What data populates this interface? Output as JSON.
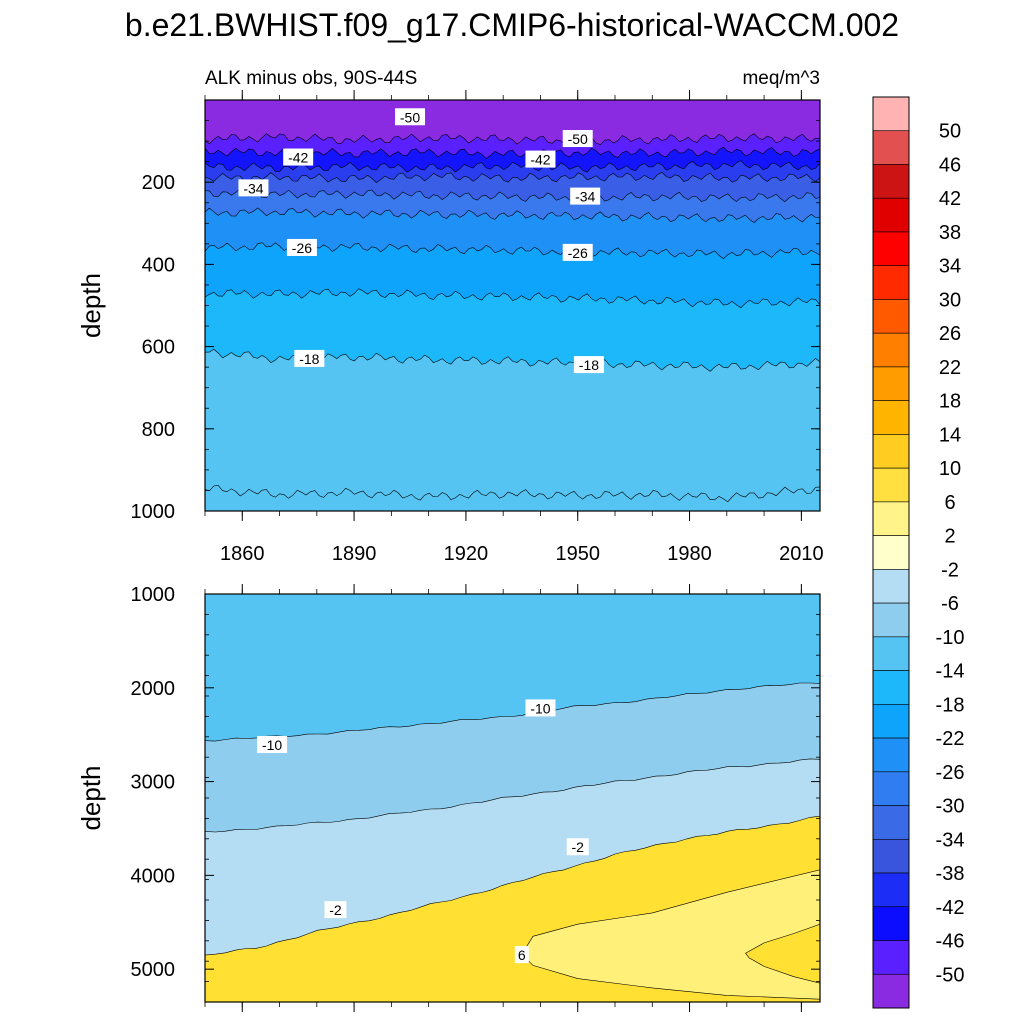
{
  "chart_data": {
    "type": "contour",
    "title": "b.e21.BWHIST.f09_g17.CMIP6-historical-WACCM.002",
    "subtitle_left": "ALK minus obs, 90S-44S",
    "subtitle_right": "meq/m^3",
    "xlabel": "",
    "xlim": [
      1850,
      2015
    ],
    "xticks": [
      "1860",
      "1890",
      "1920",
      "1950",
      "1980",
      "2010"
    ],
    "panels": [
      {
        "name": "upper",
        "ylabel": "depth",
        "ylim": [
          0,
          1000
        ],
        "yticks": [
          "200",
          "400",
          "600",
          "800",
          "1000"
        ],
        "bands": [
          {
            "level": -54,
            "color": "#8a2be2"
          },
          {
            "level": -50,
            "color": "#5a20ff"
          },
          {
            "level": -46,
            "color": "#1414ff"
          },
          {
            "level": -42,
            "color": "#2a3ef0"
          },
          {
            "level": -38,
            "color": "#3a5fe6"
          },
          {
            "level": -34,
            "color": "#3a78ee"
          },
          {
            "level": -30,
            "color": "#1f90f6"
          },
          {
            "level": -26,
            "color": "#0ea4fb"
          },
          {
            "level": -22,
            "color": "#1cb8fa"
          },
          {
            "level": -18,
            "color": "#56c4f2"
          }
        ],
        "contours": [
          {
            "level": -50,
            "years": [
              1850,
              1870,
              1890,
              1910,
              1930,
              1950,
              1970,
              1990,
              2015
            ],
            "depths": [
              95,
              90,
              98,
              92,
              95,
              100,
              96,
              92,
              95
            ]
          },
          {
            "level": -46,
            "years": [
              1850,
              1870,
              1890,
              1910,
              1930,
              1950,
              1970,
              1990,
              2015
            ],
            "depths": [
              125,
              128,
              130,
              127,
              132,
              128,
              130,
              125,
              128
            ]
          },
          {
            "level": -42,
            "years": [
              1850,
              1870,
              1890,
              1910,
              1930,
              1950,
              1970,
              1990,
              2015
            ],
            "depths": [
              162,
              165,
              162,
              166,
              160,
              165,
              162,
              158,
              162
            ]
          },
          {
            "level": -38,
            "years": [
              1850,
              1870,
              1890,
              1910,
              1930,
              1950,
              1970,
              1990,
              2015
            ],
            "depths": [
              190,
              188,
              192,
              185,
              190,
              188,
              186,
              190,
              188
            ]
          },
          {
            "level": -34,
            "years": [
              1850,
              1870,
              1890,
              1910,
              1930,
              1950,
              1970,
              1990,
              2015
            ],
            "depths": [
              225,
              230,
              228,
              232,
              235,
              238,
              235,
              238,
              235
            ]
          },
          {
            "level": -30,
            "years": [
              1850,
              1870,
              1890,
              1910,
              1930,
              1950,
              1970,
              1990,
              2015
            ],
            "depths": [
              275,
              272,
              276,
              278,
              280,
              282,
              285,
              288,
              285
            ]
          },
          {
            "level": -26,
            "years": [
              1850,
              1870,
              1890,
              1910,
              1930,
              1950,
              1970,
              1990,
              2015
            ],
            "depths": [
              360,
              355,
              358,
              362,
              365,
              370,
              372,
              375,
              368
            ]
          },
          {
            "level": -22,
            "years": [
              1850,
              1870,
              1890,
              1910,
              1930,
              1950,
              1970,
              1990,
              2015
            ],
            "depths": [
              470,
              472,
              468,
              475,
              478,
              482,
              488,
              495,
              490
            ]
          },
          {
            "level": -18,
            "years": [
              1850,
              1870,
              1890,
              1910,
              1930,
              1950,
              1970,
              1990,
              2015
            ],
            "depths": [
              612,
              630,
              625,
              632,
              635,
              640,
              645,
              650,
              640
            ]
          },
          {
            "level": -14,
            "years": [
              1850,
              1870,
              1890,
              1910,
              1930,
              1950,
              1970,
              1990,
              2015
            ],
            "depths": [
              945,
              960,
              955,
              965,
              958,
              962,
              960,
              968,
              945
            ]
          }
        ],
        "labels": [
          {
            "text": "-50",
            "year": 1905,
            "depth": 42
          },
          {
            "text": "-50",
            "year": 1950,
            "depth": 95
          },
          {
            "text": "-42",
            "year": 1875,
            "depth": 140
          },
          {
            "text": "-42",
            "year": 1940,
            "depth": 145
          },
          {
            "text": "-34",
            "year": 1863,
            "depth": 215
          },
          {
            "text": "-34",
            "year": 1952,
            "depth": 235
          },
          {
            "text": "-26",
            "year": 1876,
            "depth": 360
          },
          {
            "text": "-26",
            "year": 1950,
            "depth": 372
          },
          {
            "text": "-18",
            "year": 1878,
            "depth": 630
          },
          {
            "text": "-18",
            "year": 1953,
            "depth": 645
          }
        ]
      },
      {
        "name": "lower",
        "ylabel": "depth",
        "ylim": [
          1000,
          5350
        ],
        "yticks": [
          "1000",
          "2000",
          "3000",
          "4000",
          "5000"
        ],
        "bands": [
          {
            "level": -14,
            "color": "#56c4f2"
          },
          {
            "level": -10,
            "color": "#8fcdee"
          },
          {
            "level": -6,
            "color": "#b4dcf2"
          },
          {
            "level": -2,
            "color": "#ffffc8"
          },
          {
            "level": 2,
            "color": "#fff07a"
          },
          {
            "level": 6,
            "color": "#ffe033"
          }
        ],
        "contours": [
          {
            "level": -10,
            "years": [
              1850,
              1870,
              1890,
              1910,
              1930,
              1950,
              1970,
              1990,
              2015
            ],
            "depths": [
              2560,
              2520,
              2460,
              2380,
              2310,
              2200,
              2120,
              2020,
              1940
            ]
          },
          {
            "level": -6,
            "years": [
              1850,
              1870,
              1890,
              1910,
              1930,
              1950,
              1970,
              1990,
              2015
            ],
            "depths": [
              3540,
              3480,
              3400,
              3300,
              3180,
              3060,
              2950,
              2850,
              2760
            ]
          },
          {
            "level": -2,
            "years": [
              1850,
              1865,
              1880,
              1900,
              1920,
              1940,
              1960,
              1980,
              2000,
              2015
            ],
            "depths": [
              4860,
              4760,
              4600,
              4420,
              4220,
              4000,
              3780,
              3600,
              3480,
              3370
            ]
          }
        ],
        "regions": [
          {
            "level": 2,
            "years": [
              1935,
              1938,
              1950,
              1970,
              1990,
              2015,
              2015,
              1990,
              1970,
              1950,
              1938
            ],
            "depths": [
              4840,
              4650,
              4520,
              4400,
              4180,
              3940,
              5320,
              5280,
              5200,
              5100,
              4960
            ]
          },
          {
            "level": 6,
            "years": [
              1995,
              2000,
              2008,
              2015,
              2015,
              2008,
              2000,
              1996
            ],
            "depths": [
              4830,
              4720,
              4620,
              4520,
              5150,
              5080,
              4970,
              4880
            ]
          }
        ],
        "labels": [
          {
            "text": "-10",
            "year": 1868,
            "depth": 2610
          },
          {
            "text": "-10",
            "year": 1940,
            "depth": 2220
          },
          {
            "text": "-2",
            "year": 1950,
            "depth": 3700
          },
          {
            "text": "-2",
            "year": 1885,
            "depth": 4370
          },
          {
            "text": "6",
            "year": 1935,
            "depth": 4850
          }
        ]
      }
    ],
    "colorbar": {
      "labels": [
        "50",
        "46",
        "42",
        "38",
        "34",
        "30",
        "26",
        "22",
        "18",
        "14",
        "10",
        "6",
        "2",
        "-2",
        "-6",
        "-10",
        "-14",
        "-18",
        "-22",
        "-26",
        "-30",
        "-34",
        "-38",
        "-42",
        "-46",
        "-50"
      ],
      "colors": [
        "#ffb3b3",
        "#e35050",
        "#cc1414",
        "#e10000",
        "#ff0000",
        "#ff2a00",
        "#ff5a00",
        "#ff8000",
        "#ff9d00",
        "#ffb400",
        "#ffcc22",
        "#ffe040",
        "#fff38a",
        "#ffffcc",
        "#b4dcf2",
        "#8fcdee",
        "#56c4f2",
        "#1cb8fa",
        "#0ea4fb",
        "#1f90f6",
        "#2f7df0",
        "#3a6ae6",
        "#3a55dd",
        "#1c2ef5",
        "#0c0cff",
        "#5a20ff",
        "#8a2be2"
      ]
    }
  }
}
